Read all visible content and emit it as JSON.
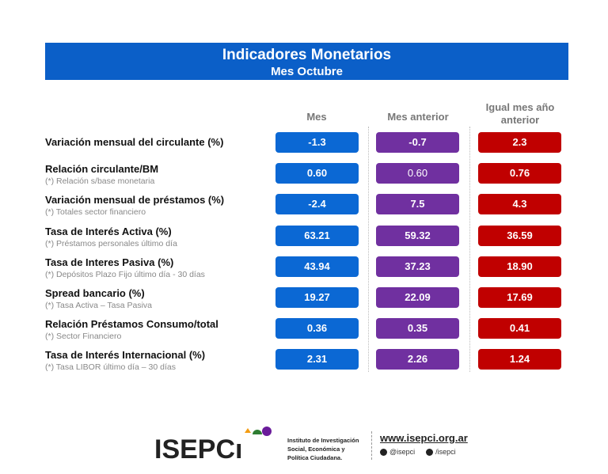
{
  "title": "Indicadores Monetarios",
  "subtitle": "Mes Octubre",
  "columns": [
    "Mes",
    "Mes anterior",
    "Igual mes año anterior"
  ],
  "rows": [
    {
      "label": "Variación mensual del circulante (%)",
      "note": "",
      "mes": "-1.3",
      "anterior": "-0.7",
      "anio_anterior": "2.3"
    },
    {
      "label": "Relación circulante/BM",
      "note": "(*) Relación s/base monetaria",
      "mes": "0.60",
      "anterior": "0.60",
      "anio_anterior": "0.76"
    },
    {
      "label": "Variación mensual de préstamos (%)",
      "note": "(*) Totales sector financiero",
      "mes": "-2.4",
      "anterior": "7.5",
      "anio_anterior": "4.3"
    },
    {
      "label": "Tasa de Interés Activa (%)",
      "note": "(*) Préstamos personales último día",
      "mes": "63.21",
      "anterior": "59.32",
      "anio_anterior": "36.59"
    },
    {
      "label": "Tasa de Interes Pasiva (%)",
      "note": "(*) Depósitos Plazo Fijo último día - 30 días",
      "mes": "43.94",
      "anterior": "37.23",
      "anio_anterior": "18.90"
    },
    {
      "label": "Spread bancario (%)",
      "note": "(*) Tasa Activa – Tasa Pasiva",
      "mes": "19.27",
      "anterior": "22.09",
      "anio_anterior": "17.69"
    },
    {
      "label": "Relación Préstamos Consumo/total",
      "note": "(*) Sector Financiero",
      "mes": "0.36",
      "anterior": "0.35",
      "anio_anterior": "0.41"
    },
    {
      "label": "Tasa de Interés Internacional (%)",
      "note": "(*) Tasa LIBOR último día – 30 días",
      "mes": "2.31",
      "anterior": "2.26",
      "anio_anterior": "1.24"
    }
  ],
  "footer": {
    "logo": "ISEPCi",
    "institute": [
      "Instituto de Investigación",
      "Social, Económica y",
      "Política Ciudadana."
    ],
    "website": "www.isepci.org.ar",
    "twitter": "@isepci",
    "facebook": "/isepci"
  },
  "colors": {
    "blue": "#0b68d4",
    "purple": "#7030a0",
    "red": "#c00000"
  }
}
